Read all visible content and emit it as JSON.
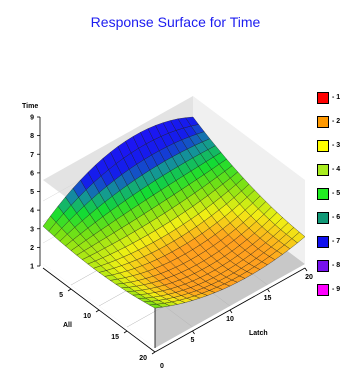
{
  "chart_data": {
    "type": "surface3d",
    "title": "Response Surface for Time",
    "zlabel": "Time",
    "xlabel": "Latch",
    "ylabel": "All",
    "xlim": [
      0,
      20
    ],
    "ylim": [
      0,
      20
    ],
    "zlim": [
      1,
      9
    ],
    "x_ticks": [
      "5",
      "10",
      "15",
      "20"
    ],
    "y_ticks": [
      "5",
      "10",
      "15",
      "20"
    ],
    "z_ticks": [
      "1",
      "2",
      "3",
      "4",
      "5",
      "6",
      "7",
      "8",
      "9"
    ],
    "x_zero_label": "0",
    "grid": true,
    "legend_position": "right",
    "legend": [
      {
        "label": "- 1",
        "color": "#ff0000"
      },
      {
        "label": "- 2",
        "color": "#ff9900"
      },
      {
        "label": "- 3",
        "color": "#ffff00"
      },
      {
        "label": "- 4",
        "color": "#a8ec20"
      },
      {
        "label": "- 5",
        "color": "#22ee22"
      },
      {
        "label": "- 6",
        "color": "#119977"
      },
      {
        "label": "- 7",
        "color": "#1010ee"
      },
      {
        "label": "- 8",
        "color": "#7711ee"
      },
      {
        "label": "- 9",
        "color": "#ff00ff"
      }
    ],
    "surface_samples": [
      {
        "x": 0,
        "y": 0,
        "z": 4.6
      },
      {
        "x": 0,
        "y": 10,
        "z": 4.2
      },
      {
        "x": 0,
        "y": 20,
        "z": 4.8
      },
      {
        "x": 10,
        "y": 0,
        "z": 8.2
      },
      {
        "x": 10,
        "y": 10,
        "z": 3.2
      },
      {
        "x": 10,
        "y": 20,
        "z": 2.9
      },
      {
        "x": 20,
        "y": 0,
        "z": 7.0
      },
      {
        "x": 20,
        "y": 10,
        "z": 4.6
      },
      {
        "x": 20,
        "y": 20,
        "z": 3.6
      }
    ]
  }
}
